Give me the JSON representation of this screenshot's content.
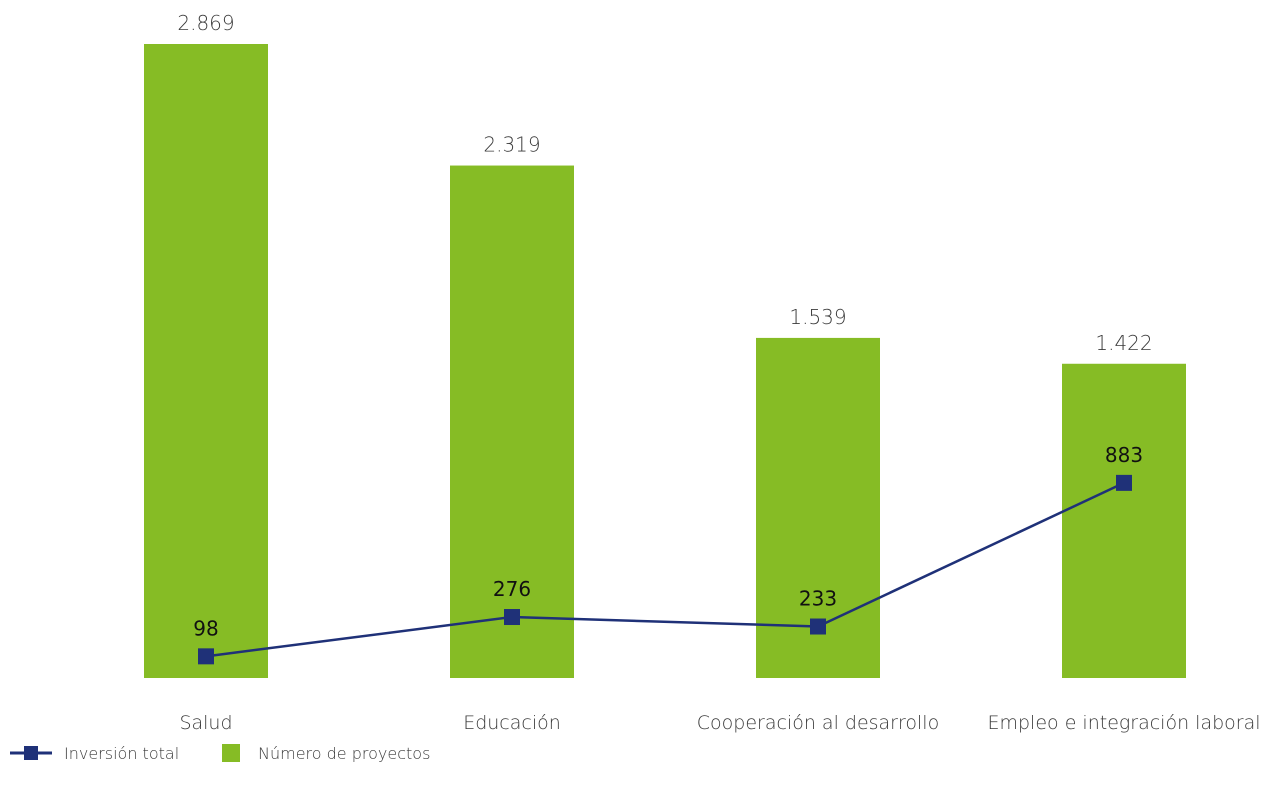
{
  "chart_data": {
    "type": "bar",
    "categories": [
      "Salud",
      "Educación",
      "Cooperación al desarrollo",
      "Empleo e integración laboral"
    ],
    "series": [
      {
        "name": "Número de proyectos",
        "type": "bar",
        "values": [
          2869,
          2319,
          1539,
          1422
        ],
        "labels": [
          "2.869",
          "2.319",
          "1.539",
          "1.422"
        ],
        "color": "#86bc25"
      },
      {
        "name": "Inversión total",
        "type": "line",
        "values": [
          98,
          276,
          233,
          883
        ],
        "labels": [
          "98",
          "276",
          "233",
          "883"
        ],
        "color": "#1f3178"
      }
    ],
    "ylim": [
      0,
      2869
    ],
    "grid": false,
    "legend": "bottom-left",
    "title": "",
    "xlabel": "",
    "ylabel": ""
  }
}
